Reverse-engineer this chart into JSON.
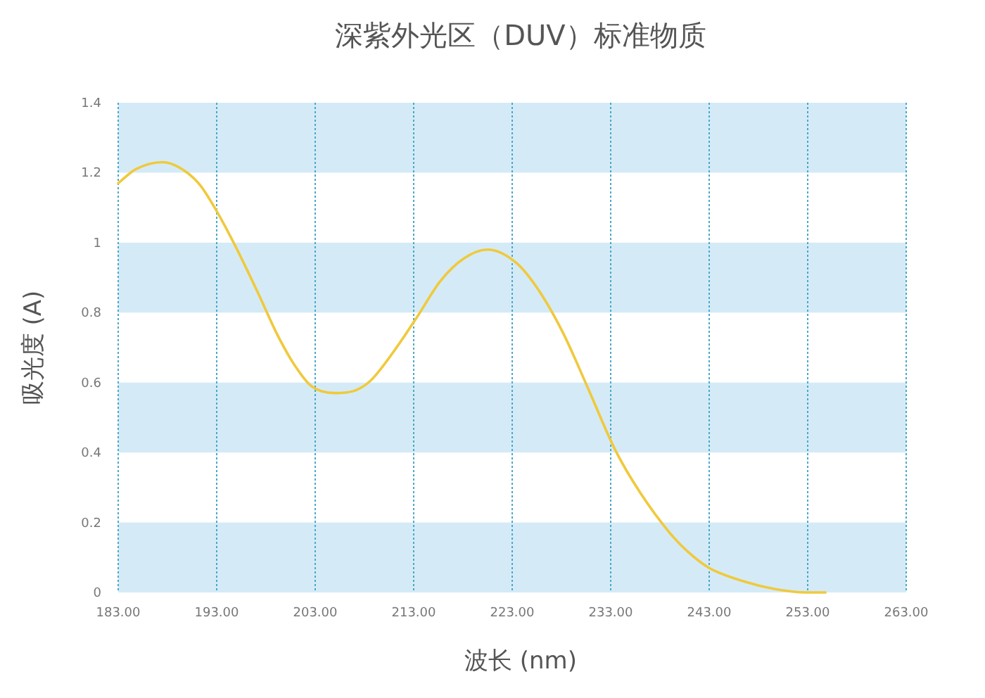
{
  "chart_data": {
    "type": "line",
    "title": "深紫外光区（DUV）标准物质",
    "xlabel": "波长 (nm)",
    "ylabel": "吸光度 (A)",
    "x": [
      183.0,
      184.8,
      187.5,
      189.5,
      191.3,
      193.0,
      194.9,
      197.3,
      199.1,
      200.9,
      202.6,
      205.0,
      206.8,
      208.6,
      211.0,
      213.4,
      215.7,
      218.1,
      220.5,
      223.5,
      225.9,
      228.2,
      230.6,
      233.5,
      236.0,
      239.0,
      240.7,
      243.0,
      246.7,
      249.6,
      252.9,
      254.8
    ],
    "values": [
      1.17,
      1.21,
      1.23,
      1.21,
      1.165,
      1.09,
      0.99,
      0.85,
      0.74,
      0.65,
      0.59,
      0.57,
      0.575,
      0.605,
      0.69,
      0.79,
      0.89,
      0.955,
      0.98,
      0.94,
      0.855,
      0.74,
      0.59,
      0.405,
      0.285,
      0.17,
      0.12,
      0.07,
      0.03,
      0.01,
      0.0,
      0.0
    ],
    "color": "#f0c93c",
    "xlim": [
      183,
      263
    ],
    "xticks": [
      {
        "value": 183,
        "label": "183.00"
      },
      {
        "value": 193,
        "label": "193.00"
      },
      {
        "value": 203,
        "label": "203.00"
      },
      {
        "value": 213,
        "label": "213.00"
      },
      {
        "value": 223,
        "label": "223.00"
      },
      {
        "value": 233,
        "label": "233.00"
      },
      {
        "value": 243,
        "label": "243.00"
      },
      {
        "value": 253,
        "label": "253.00"
      },
      {
        "value": 263,
        "label": "263.00"
      }
    ],
    "ylim": [
      0,
      1.4
    ],
    "yticks": [
      0,
      0.2,
      0.4,
      0.6,
      0.8,
      1,
      1.2,
      1.4
    ],
    "bands": [
      {
        "axis": "y",
        "from": 0,
        "to": 0.2,
        "color": "#d4ebf7"
      },
      {
        "axis": "y",
        "from": 0.4,
        "to": 0.6,
        "color": "#d4ebf7"
      },
      {
        "axis": "y",
        "from": 0.8,
        "to": 1,
        "color": "#d4ebf7"
      },
      {
        "axis": "y",
        "from": 1.2,
        "to": 1.4,
        "color": "#d4ebf7"
      }
    ],
    "grid": "x"
  }
}
